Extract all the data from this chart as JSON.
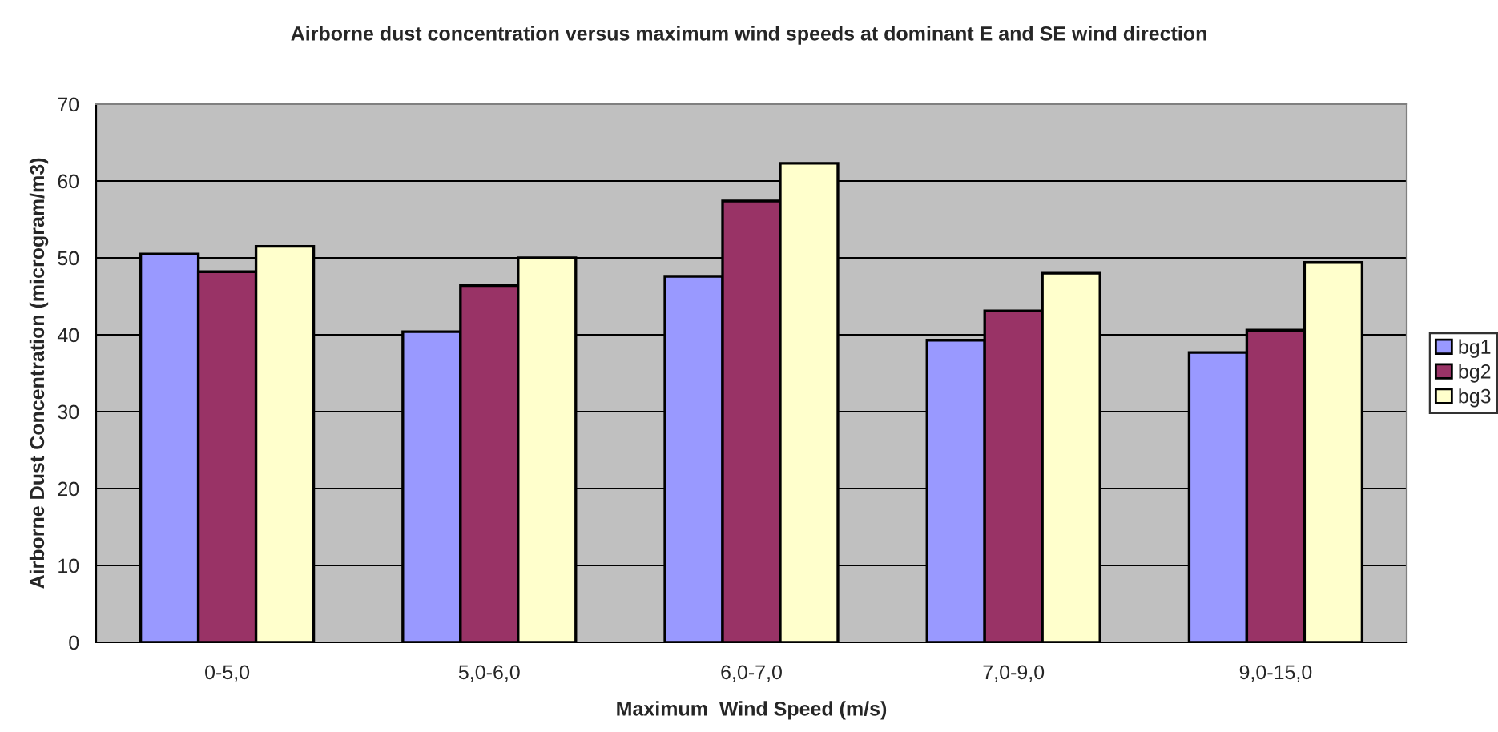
{
  "chart_data": {
    "type": "bar",
    "title": "Airborne dust concentration versus maximum wind speeds at dominant E and SE wind direction",
    "xlabel": "Maximum  Wind Speed (m/s)",
    "ylabel": "Airborne Dust Concentration (microgram/m3)",
    "categories": [
      "0-5,0",
      "5,0-6,0",
      "6,0-7,0",
      "7,0-9,0",
      "9,0-15,0"
    ],
    "series": [
      {
        "name": "bg1",
        "color": "#9999ff",
        "values": [
          50.5,
          40.4,
          47.6,
          39.3,
          37.7
        ]
      },
      {
        "name": "bg2",
        "color": "#993366",
        "values": [
          48.2,
          46.4,
          57.4,
          43.1,
          40.6
        ]
      },
      {
        "name": "bg3",
        "color": "#ffffcc",
        "values": [
          51.5,
          50.0,
          62.3,
          48.0,
          49.4
        ]
      }
    ],
    "ylim": [
      0,
      70
    ],
    "yticks": [
      0,
      10,
      20,
      30,
      40,
      50,
      60,
      70
    ],
    "grid": "y",
    "legend": "right"
  }
}
